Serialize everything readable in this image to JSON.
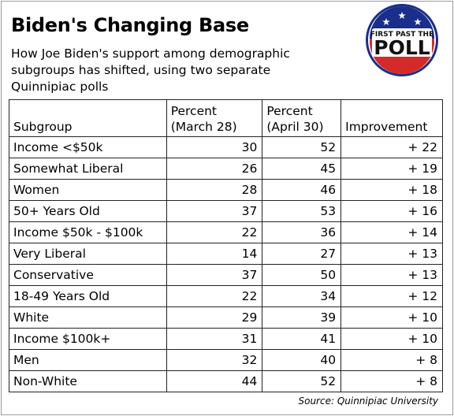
{
  "title": "Biden's Changing Base",
  "subtitle": "How Joe Biden's support among demographic subgroups has shifted, using two separate Quinnipiac polls",
  "logo": {
    "top_text": "FIRST PAST THE",
    "main_text": "POLL",
    "colors": {
      "red": "#d42a2a",
      "blue": "#1a2e8c",
      "white": "#ffffff"
    }
  },
  "source": "Source: Quinnipiac University",
  "chart_data": {
    "type": "table",
    "columns": [
      {
        "line1": "",
        "line2": "Subgroup"
      },
      {
        "line1": "Percent",
        "line2": "(March 28)"
      },
      {
        "line1": "Percent",
        "line2": "(April 30)"
      },
      {
        "line1": "",
        "line2": "Improvement"
      }
    ],
    "rows": [
      [
        "Income <$50k",
        "30",
        "52",
        "+ 22"
      ],
      [
        "Somewhat Liberal",
        "26",
        "45",
        "+ 19"
      ],
      [
        "Women",
        "28",
        "46",
        "+ 18"
      ],
      [
        "50+ Years Old",
        "37",
        "53",
        "+ 16"
      ],
      [
        "Income $50k - $100k",
        "22",
        "36",
        "+ 14"
      ],
      [
        "Very Liberal",
        "14",
        "27",
        "+ 13"
      ],
      [
        "Conservative",
        "37",
        "50",
        "+ 13"
      ],
      [
        "18-49 Years Old",
        "22",
        "34",
        "+ 12"
      ],
      [
        "White",
        "29",
        "39",
        "+ 10"
      ],
      [
        "Income $100k+",
        "31",
        "41",
        "+ 10"
      ],
      [
        "Men",
        "32",
        "40",
        "+ 8"
      ],
      [
        "Non-White",
        "44",
        "52",
        "+ 8"
      ]
    ]
  }
}
